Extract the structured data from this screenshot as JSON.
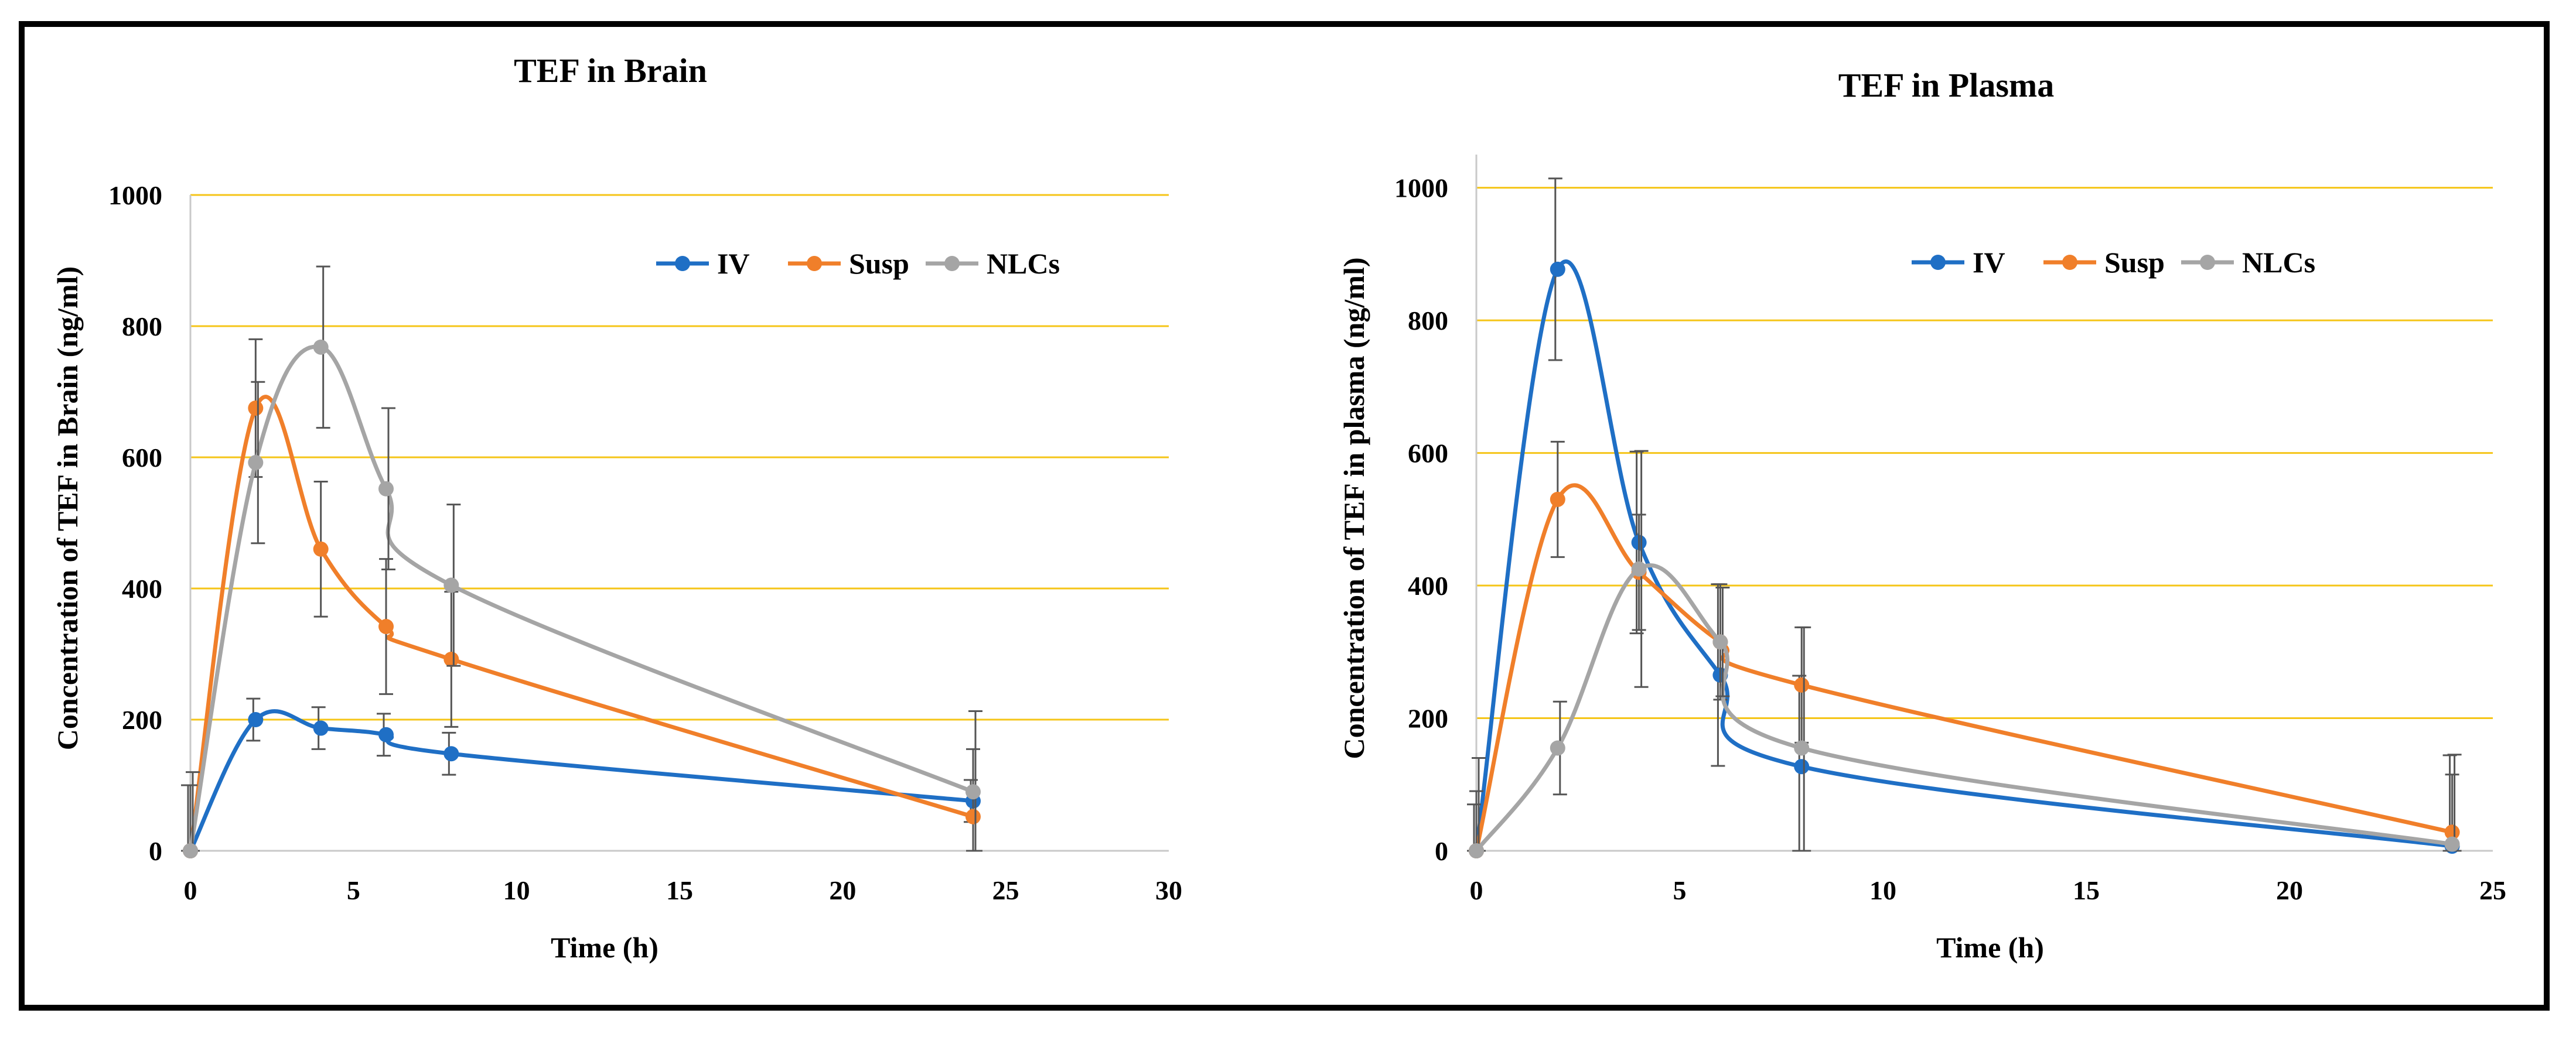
{
  "colors": {
    "IV": "#1f6fc5",
    "Susp": "#f07f2a",
    "NLCs": "#a5a5a5",
    "grid": "#f5c518",
    "axis": "#c9c9c9",
    "errbar": "#555555"
  },
  "chart_data": [
    {
      "type": "line",
      "title": "TEF in Brain",
      "xlabel": "Time (h)",
      "ylabel": "Concentration of TEF in Brain (ng/ml)",
      "xlim": [
        0,
        30
      ],
      "ylim": [
        0,
        1000
      ],
      "xticks": [
        0,
        5,
        10,
        15,
        20,
        25,
        30
      ],
      "yticks": [
        0,
        200,
        400,
        600,
        800,
        1000
      ],
      "x": [
        0,
        2,
        4,
        6,
        8,
        24
      ],
      "legend_position": "top-right",
      "series": [
        {
          "name": "IV",
          "values": [
            0,
            200,
            187,
            177,
            148,
            76
          ],
          "errors": [
            100,
            32,
            32,
            32,
            32,
            32
          ]
        },
        {
          "name": "Susp",
          "values": [
            0,
            675,
            460,
            342,
            292,
            52
          ],
          "errors": [
            100,
            105,
            103,
            103,
            103,
            103
          ]
        },
        {
          "name": "NLCs",
          "values": [
            0,
            592,
            768,
            552,
            405,
            90
          ],
          "errors": [
            120,
            123,
            123,
            123,
            123,
            123
          ]
        }
      ]
    },
    {
      "type": "line",
      "title": "TEF in Plasma",
      "xlabel": "Time (h)",
      "ylabel": "Concentration of TEF in plasma (ng/ml)",
      "xlim": [
        0,
        25
      ],
      "ylim": [
        0,
        1050
      ],
      "xticks": [
        0,
        5,
        10,
        15,
        20,
        25
      ],
      "yticks": [
        0,
        200,
        400,
        600,
        800,
        1000
      ],
      "x": [
        0,
        2,
        4,
        6,
        8,
        24
      ],
      "legend_position": "top-right",
      "series": [
        {
          "name": "IV",
          "values": [
            0,
            877,
            465,
            265,
            127,
            7
          ],
          "errors": [
            70,
            137,
            137,
            137,
            137,
            137
          ]
        },
        {
          "name": "Susp",
          "values": [
            0,
            530,
            420,
            315,
            250,
            28
          ],
          "errors": [
            90,
            87,
            87,
            87,
            87,
            87
          ]
        },
        {
          "name": "NLCs",
          "values": [
            0,
            155,
            425,
            315,
            155,
            10
          ],
          "errors": [
            140,
            70,
            178,
            82,
            182,
            135
          ]
        }
      ]
    }
  ]
}
